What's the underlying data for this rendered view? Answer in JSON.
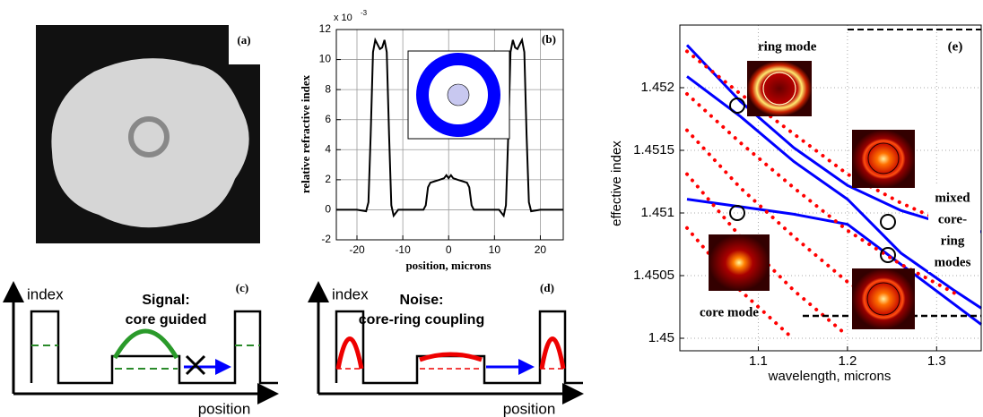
{
  "panel_a": {
    "label": "(a)"
  },
  "panel_c": {
    "label": "(c)",
    "y_label": "index",
    "x_label": "position",
    "title": [
      "Signal:",
      "core guided"
    ]
  },
  "panel_d": {
    "label": "(d)",
    "y_label": "index",
    "x_label": "position",
    "title": [
      "Noise:",
      "core-ring coupling"
    ]
  },
  "chart_data": [
    {
      "type": "line",
      "label": "(b)",
      "y_label": "relative refractive index",
      "x_label": "position, microns",
      "y_multiplier": {
        "base": "x 10",
        "exponent": "-3"
      },
      "xlim": [
        -24.5,
        25
      ],
      "xticks": [
        -20,
        -10,
        0,
        10,
        20
      ],
      "ylim": [
        -2,
        12
      ],
      "yticks": [
        -2,
        0,
        2,
        4,
        6,
        8,
        10,
        12
      ],
      "grid": true,
      "x": [
        -24.5,
        -20,
        -18,
        -17.5,
        -17,
        -16.5,
        -16,
        -15.5,
        -15,
        -14.5,
        -14,
        -13.5,
        -13,
        -12.5,
        -12,
        -11,
        -8,
        -5.5,
        -5,
        -4.5,
        -4,
        -3,
        -2,
        -1,
        -0.5,
        0,
        0.5,
        1,
        2,
        3,
        4,
        4.5,
        5,
        5.5,
        8,
        11,
        12,
        12.5,
        13,
        13.5,
        14,
        14.5,
        15,
        15.5,
        16,
        16.5,
        17,
        17.5,
        18,
        20,
        25
      ],
      "series": [
        {
          "color": "#000000",
          "style": "solid",
          "values": [
            0,
            0,
            -0.1,
            0.5,
            5,
            10.5,
            11.3,
            11,
            10.7,
            10.8,
            11.3,
            10.5,
            5,
            0.3,
            -0.4,
            0,
            0,
            0,
            0.3,
            1.5,
            1.8,
            1.9,
            2,
            2.1,
            2.3,
            2.1,
            2.3,
            2.1,
            2,
            1.9,
            1.8,
            1.5,
            0.3,
            0,
            0,
            0,
            -0.4,
            0.3,
            5,
            10.5,
            11.3,
            10.8,
            10.7,
            11,
            11.3,
            10.5,
            5,
            0.5,
            -0.1,
            0,
            0
          ]
        }
      ]
    },
    {
      "type": "line",
      "label": "(e)",
      "y_label": "effective index",
      "x_label": "wavelength, microns",
      "annotations": [
        "ring mode",
        "mixed",
        "core-",
        "ring",
        "modes",
        "core mode"
      ],
      "xlim": [
        1.012,
        1.35
      ],
      "xticks": [
        1.1,
        1.2,
        1.3
      ],
      "ylim": [
        1.4499,
        1.4525
      ],
      "yticks": [
        1.45,
        1.4505,
        1.451,
        1.4515,
        1.452
      ],
      "grid": true,
      "x": [
        1.02,
        1.08,
        1.14,
        1.2,
        1.26,
        1.32,
        1.35
      ],
      "series": [
        {
          "color": "#0000ff",
          "style": "solid",
          "values": [
            1.45234,
            1.45189,
            1.45152,
            1.45122,
            1.45102,
            1.45089,
            1.45085
          ]
        },
        {
          "color": "#0000ff",
          "style": "solid",
          "values": [
            1.45209,
            1.45177,
            1.45141,
            1.45111,
            1.45068,
            1.45038,
            1.45024
          ]
        },
        {
          "color": "#0000ff",
          "style": "solid",
          "values": [
            1.45111,
            1.45105,
            1.45099,
            1.45091,
            1.45059,
            1.45027,
            1.45011
          ]
        },
        {
          "color": "#ff0000",
          "style": "dotted",
          "values": [
            1.45229,
            1.45195,
            1.45163,
            1.45131,
            1.45108,
            1.45089,
            1.45082
          ]
        },
        {
          "color": "#ff0000",
          "style": "dotted",
          "values": [
            1.45195,
            1.45156,
            1.4512,
            1.45086,
            1.45059,
            1.45036,
            null
          ]
        },
        {
          "color": "#ff0000",
          "style": "dotted",
          "values": [
            1.45166,
            1.4512,
            1.45081,
            1.45045,
            1.45016,
            null,
            null
          ]
        },
        {
          "color": "#ff0000",
          "style": "dotted",
          "values": [
            1.45131,
            1.45081,
            1.45038,
            1.45002,
            null,
            null,
            null
          ]
        },
        {
          "color": "#ff0000",
          "style": "dotted",
          "values": [
            1.45088,
            1.45038,
            1.44999,
            null,
            null,
            null,
            null
          ]
        }
      ]
    }
  ]
}
